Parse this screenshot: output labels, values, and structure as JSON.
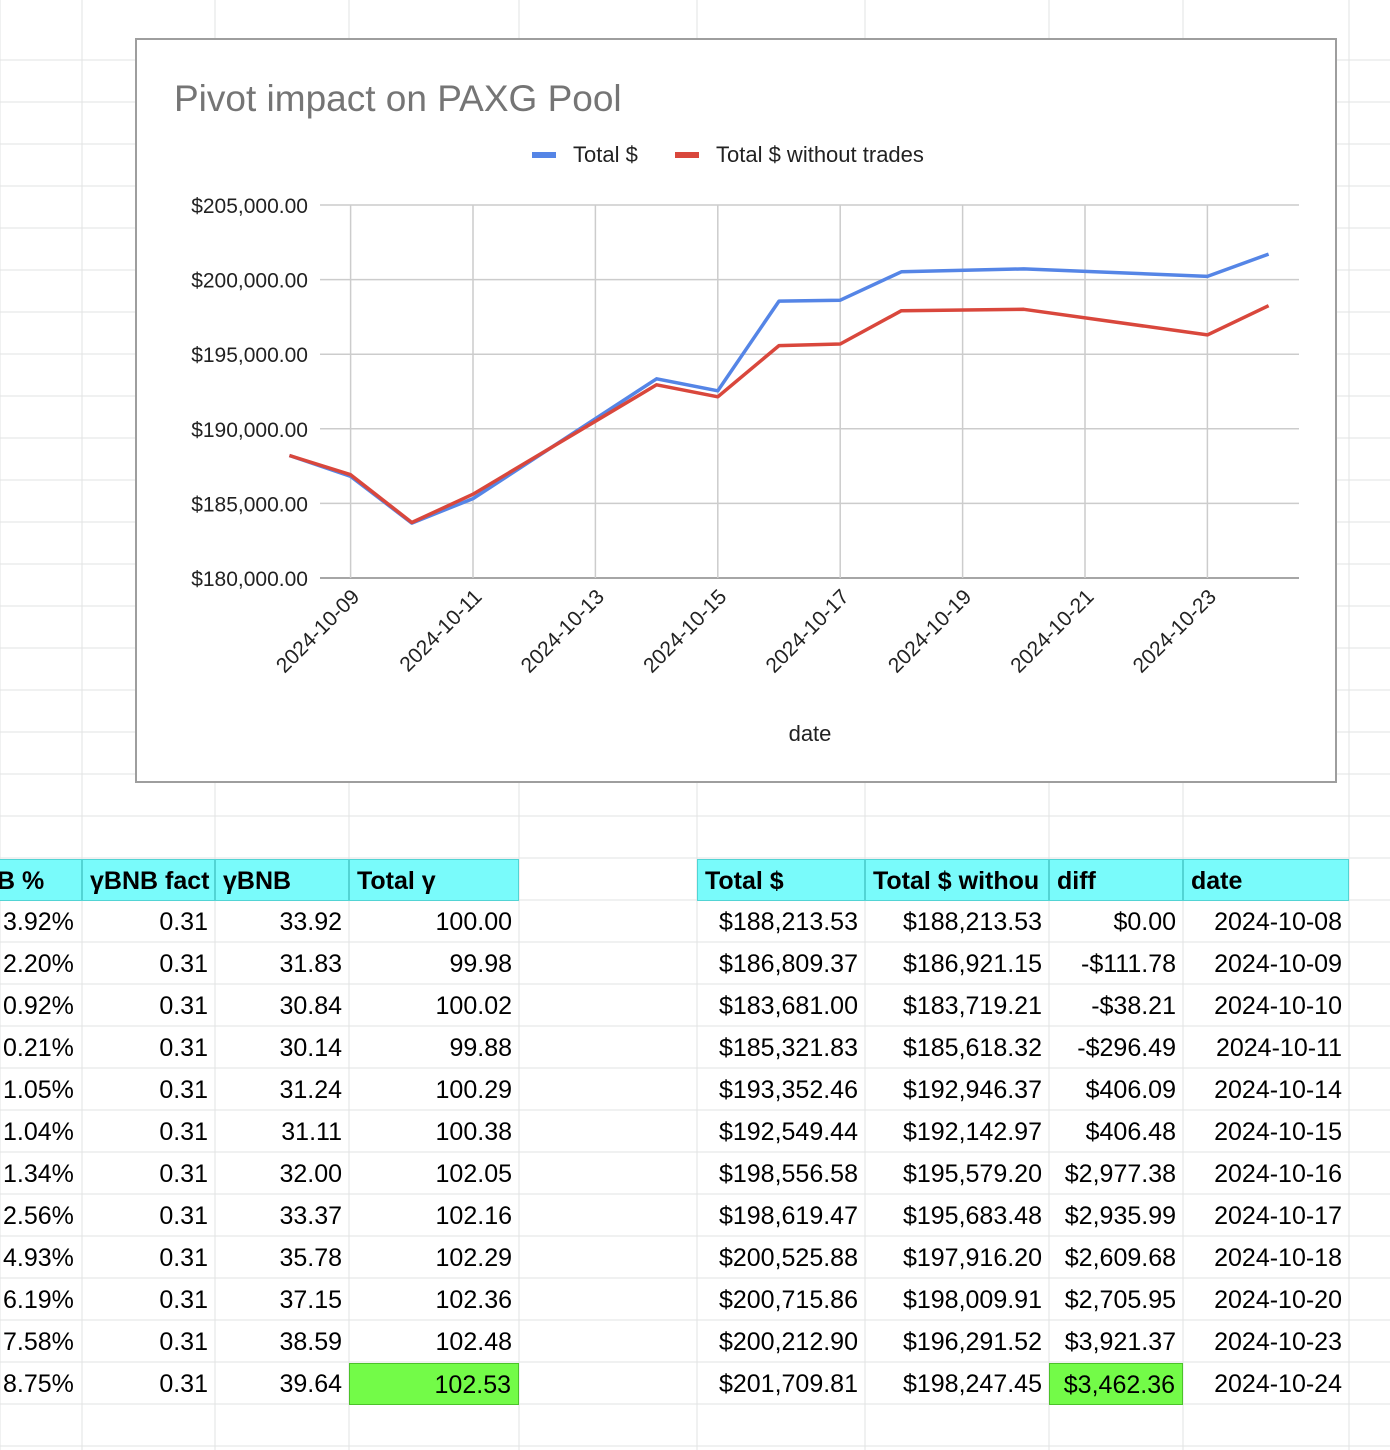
{
  "chart_data": {
    "type": "line",
    "title": "Pivot impact on PAXG Pool",
    "xlabel": "date",
    "ylabel": "",
    "legend_position": "top-center",
    "grid": true,
    "ylim": [
      180000,
      205000
    ],
    "y_ticks": [
      "$205,000.00",
      "$200,000.00",
      "$195,000.00",
      "$190,000.00",
      "$185,000.00",
      "$180,000.00"
    ],
    "y_tick_values": [
      205000,
      200000,
      195000,
      190000,
      185000,
      180000
    ],
    "x_ticks": [
      "2024-10-09",
      "2024-10-11",
      "2024-10-13",
      "2024-10-15",
      "2024-10-17",
      "2024-10-19",
      "2024-10-21",
      "2024-10-23"
    ],
    "x": [
      "2024-10-08",
      "2024-10-09",
      "2024-10-10",
      "2024-10-11",
      "2024-10-14",
      "2024-10-15",
      "2024-10-16",
      "2024-10-17",
      "2024-10-18",
      "2024-10-20",
      "2024-10-23",
      "2024-10-24"
    ],
    "series": [
      {
        "name": "Total $",
        "color": "#5585e6",
        "values": [
          188213.53,
          186809.37,
          183681.0,
          185321.83,
          193352.46,
          192549.44,
          198556.58,
          198619.47,
          200525.88,
          200715.86,
          200212.9,
          201709.81
        ]
      },
      {
        "name": "Total $ without trades",
        "color": "#d9473c",
        "values": [
          188213.53,
          186921.15,
          183719.21,
          185618.32,
          192946.37,
          192142.97,
          195579.2,
          195683.48,
          197916.2,
          198009.91,
          196291.52,
          198247.45
        ]
      }
    ]
  },
  "left_table": {
    "headers": [
      "B %",
      "γBNB fact",
      "γBNB",
      "Total γ"
    ],
    "rows": [
      [
        "3.92%",
        "0.31",
        "33.92",
        "100.00"
      ],
      [
        "2.20%",
        "0.31",
        "31.83",
        "99.98"
      ],
      [
        "0.92%",
        "0.31",
        "30.84",
        "100.02"
      ],
      [
        "0.21%",
        "0.31",
        "30.14",
        "99.88"
      ],
      [
        "1.05%",
        "0.31",
        "31.24",
        "100.29"
      ],
      [
        "1.04%",
        "0.31",
        "31.11",
        "100.38"
      ],
      [
        "1.34%",
        "0.31",
        "32.00",
        "102.05"
      ],
      [
        "2.56%",
        "0.31",
        "33.37",
        "102.16"
      ],
      [
        "4.93%",
        "0.31",
        "35.78",
        "102.29"
      ],
      [
        "6.19%",
        "0.31",
        "37.15",
        "102.36"
      ],
      [
        "7.58%",
        "0.31",
        "38.59",
        "102.48"
      ],
      [
        "8.75%",
        "0.31",
        "39.64",
        "102.53"
      ]
    ]
  },
  "right_table": {
    "headers": [
      "Total $",
      "Total $ withou",
      "diff",
      "date"
    ],
    "rows": [
      [
        "$188,213.53",
        "$188,213.53",
        "$0.00",
        "2024-10-08"
      ],
      [
        "$186,809.37",
        "$186,921.15",
        "-$111.78",
        "2024-10-09"
      ],
      [
        "$183,681.00",
        "$183,719.21",
        "-$38.21",
        "2024-10-10"
      ],
      [
        "$185,321.83",
        "$185,618.32",
        "-$296.49",
        "2024-10-11"
      ],
      [
        "$193,352.46",
        "$192,946.37",
        "$406.09",
        "2024-10-14"
      ],
      [
        "$192,549.44",
        "$192,142.97",
        "$406.48",
        "2024-10-15"
      ],
      [
        "$198,556.58",
        "$195,579.20",
        "$2,977.38",
        "2024-10-16"
      ],
      [
        "$198,619.47",
        "$195,683.48",
        "$2,935.99",
        "2024-10-17"
      ],
      [
        "$200,525.88",
        "$197,916.20",
        "$2,609.68",
        "2024-10-18"
      ],
      [
        "$200,715.86",
        "$198,009.91",
        "$2,705.95",
        "2024-10-20"
      ],
      [
        "$200,212.90",
        "$196,291.52",
        "$3,921.37",
        "2024-10-23"
      ],
      [
        "$201,709.81",
        "$198,247.45",
        "$3,462.36",
        "2024-10-24"
      ]
    ]
  },
  "colors": {
    "header_fill": "#79fbfb",
    "highlight_fill": "#73fb48",
    "gridline": "#e2e3e3"
  }
}
